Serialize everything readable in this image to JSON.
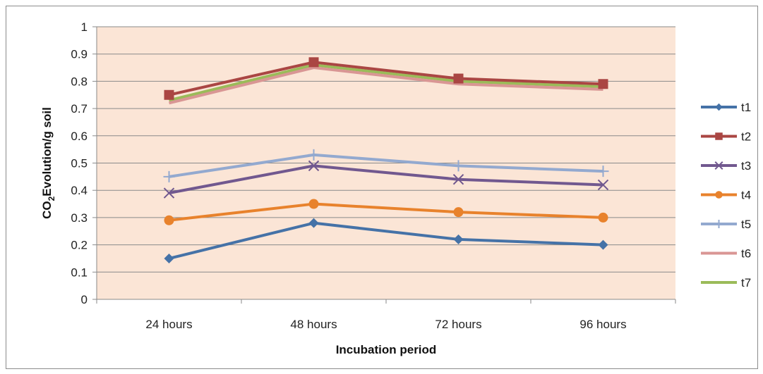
{
  "chart_data": {
    "type": "line",
    "title": "",
    "xlabel": "Incubation period",
    "ylabel": {
      "prefix": "CO",
      "sub": "2",
      "suffix": "Evolution/g soil"
    },
    "categories": [
      "24 hours",
      "48 hours",
      "72 hours",
      "96 hours"
    ],
    "ylim": [
      0,
      1
    ],
    "yticks": [
      0,
      0.1,
      0.2,
      0.3,
      0.4,
      0.5,
      0.6,
      0.7,
      0.8,
      0.9,
      1
    ],
    "grid": true,
    "legend_position": "right",
    "plot_background": "#fbe5d6",
    "series": [
      {
        "name": "t1",
        "values": [
          0.15,
          0.28,
          0.22,
          0.2
        ],
        "color": "#4572a7",
        "marker": "diamond"
      },
      {
        "name": "t2",
        "values": [
          0.75,
          0.87,
          0.81,
          0.79
        ],
        "color": "#aa4643",
        "marker": "square"
      },
      {
        "name": "t3",
        "values": [
          0.39,
          0.49,
          0.44,
          0.42
        ],
        "color": "#71588f",
        "marker": "x"
      },
      {
        "name": "t4",
        "values": [
          0.29,
          0.35,
          0.32,
          0.3
        ],
        "color": "#e8822c",
        "marker": "circle"
      },
      {
        "name": "t5",
        "values": [
          0.45,
          0.53,
          0.49,
          0.47
        ],
        "color": "#93a9cf",
        "marker": "plus"
      },
      {
        "name": "t6",
        "values": [
          0.72,
          0.85,
          0.79,
          0.77
        ],
        "color": "#d99694",
        "marker": "none"
      },
      {
        "name": "t7",
        "values": [
          0.73,
          0.86,
          0.8,
          0.78
        ],
        "color": "#9bbb59",
        "marker": "none"
      }
    ]
  }
}
